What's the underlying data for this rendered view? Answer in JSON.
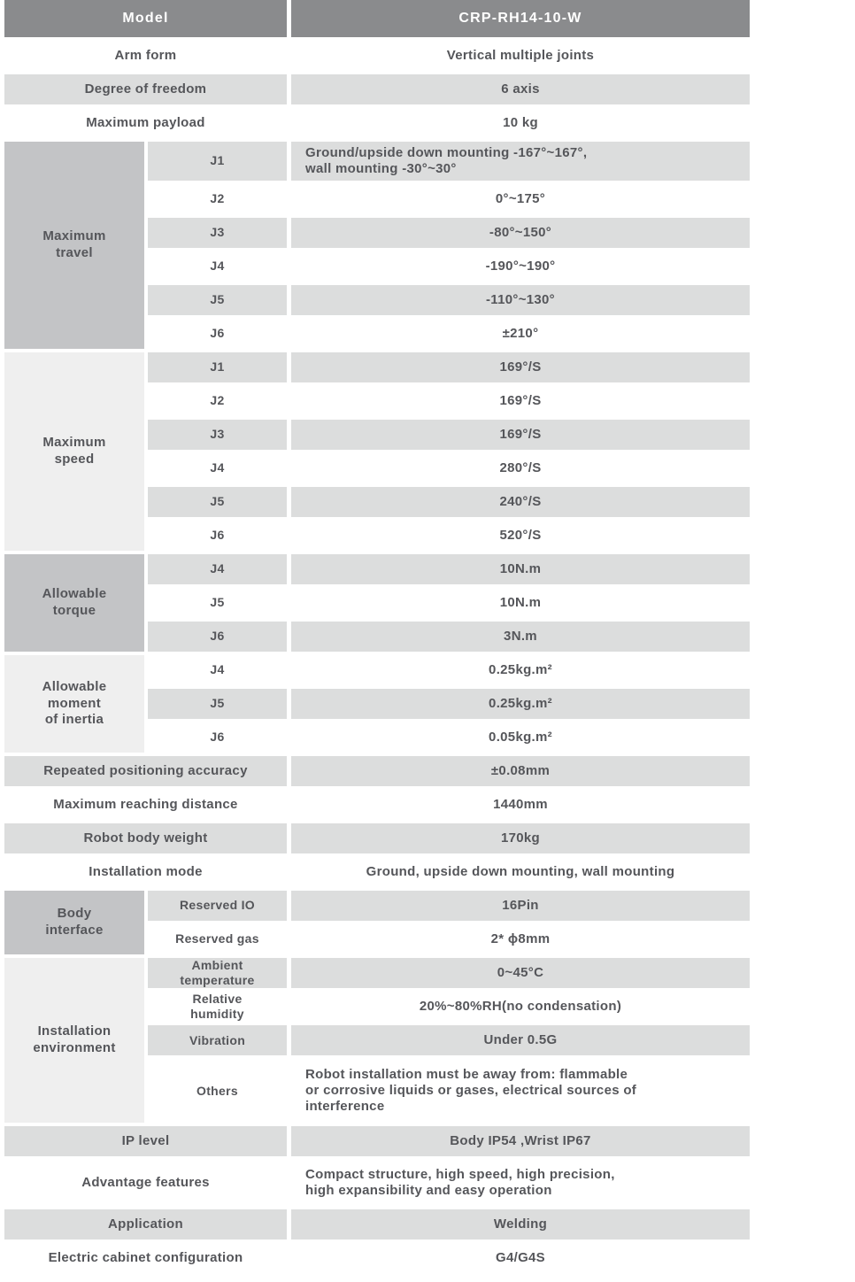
{
  "page": {
    "colors": {
      "header_bg": "#8a8b8d",
      "header_text": "#ffffff",
      "row_stripe_gray": "#dcdddd",
      "row_stripe_white": "#ffffff",
      "group_cell_dark": "#c3c4c6",
      "group_cell_light": "#efefef",
      "body_text": "#55565a"
    }
  },
  "table": {
    "header": {
      "label": "Model",
      "value": "CRP-RH14-10-W"
    },
    "sections": [
      {
        "kind": "rows",
        "rows": [
          {
            "label": "Arm form",
            "value": "Vertical multiple joints"
          },
          {
            "label": "Degree of freedom",
            "value": "6 axis"
          },
          {
            "label": "Maximum payload",
            "value": "10 kg"
          }
        ]
      },
      {
        "kind": "group",
        "label": "Maximum\ntravel",
        "tone": "dark",
        "rows": [
          {
            "sub": "J1",
            "value": "Ground/upside down mounting -167°~167°,\nwall mounting -30°~30°",
            "size": "tall2",
            "align": "left"
          },
          {
            "sub": "J2",
            "value": "0°~175°"
          },
          {
            "sub": "J3",
            "value": "-80°~150°"
          },
          {
            "sub": "J4",
            "value": "-190°~190°"
          },
          {
            "sub": "J5",
            "value": "-110°~130°"
          },
          {
            "sub": "J6",
            "value": "±210°"
          }
        ]
      },
      {
        "kind": "group",
        "label": "Maximum\nspeed",
        "tone": "light",
        "rows": [
          {
            "sub": "J1",
            "value": "169°/S"
          },
          {
            "sub": "J2",
            "value": "169°/S"
          },
          {
            "sub": "J3",
            "value": "169°/S"
          },
          {
            "sub": "J4",
            "value": "280°/S"
          },
          {
            "sub": "J5",
            "value": "240°/S"
          },
          {
            "sub": "J6",
            "value": "520°/S"
          }
        ]
      },
      {
        "kind": "group",
        "label": "Allowable\ntorque",
        "tone": "dark",
        "rows": [
          {
            "sub": "J4",
            "value": "10N.m"
          },
          {
            "sub": "J5",
            "value": "10N.m"
          },
          {
            "sub": "J6",
            "value": "3N.m"
          }
        ]
      },
      {
        "kind": "group",
        "label": "Allowable\nmoment\nof inertia",
        "tone": "light",
        "rows": [
          {
            "sub": "J4",
            "value": "0.25kg.m²"
          },
          {
            "sub": "J5",
            "value": "0.25kg.m²"
          },
          {
            "sub": "J6",
            "value": "0.05kg.m²"
          }
        ]
      },
      {
        "kind": "rows",
        "rows": [
          {
            "label": "Repeated positioning accuracy",
            "value": "±0.08mm"
          },
          {
            "label": "Maximum reaching distance",
            "value": "1440mm"
          },
          {
            "label": "Robot body weight",
            "value": "170kg"
          },
          {
            "label": "Installation mode",
            "value": "Ground, upside down mounting, wall mounting"
          }
        ]
      },
      {
        "kind": "group",
        "label": "Body\ninterface",
        "tone": "dark",
        "rows": [
          {
            "sub": "Reserved IO",
            "value": "16Pin"
          },
          {
            "sub": "Reserved gas",
            "value": "2* ϕ8mm"
          }
        ]
      },
      {
        "kind": "group",
        "label": "Installation\nenvironment",
        "tone": "light",
        "rows": [
          {
            "sub": "Ambient\ntemperature",
            "value": "0~45°C"
          },
          {
            "sub": "Relative\nhumidity",
            "value": "20%~80%RH(no condensation)"
          },
          {
            "sub": "Vibration",
            "value": "Under 0.5G"
          },
          {
            "sub": "Others",
            "value": "Robot installation must be away from: flammable\nor corrosive liquids or gases, electrical sources of\ninterference",
            "size": "tall3",
            "align": "left"
          }
        ]
      },
      {
        "kind": "rows",
        "rows": [
          {
            "label": "IP level",
            "value": "Body IP54 ,Wrist IP67"
          },
          {
            "label": "Advantage features",
            "value": "Compact structure, high speed, high precision,\nhigh expansibility and easy operation",
            "size": "tall2b",
            "align": "left"
          },
          {
            "label": "Application",
            "value": "Welding"
          },
          {
            "label": "Electric cabinet configuration",
            "value": "G4/G4S"
          }
        ]
      }
    ]
  }
}
